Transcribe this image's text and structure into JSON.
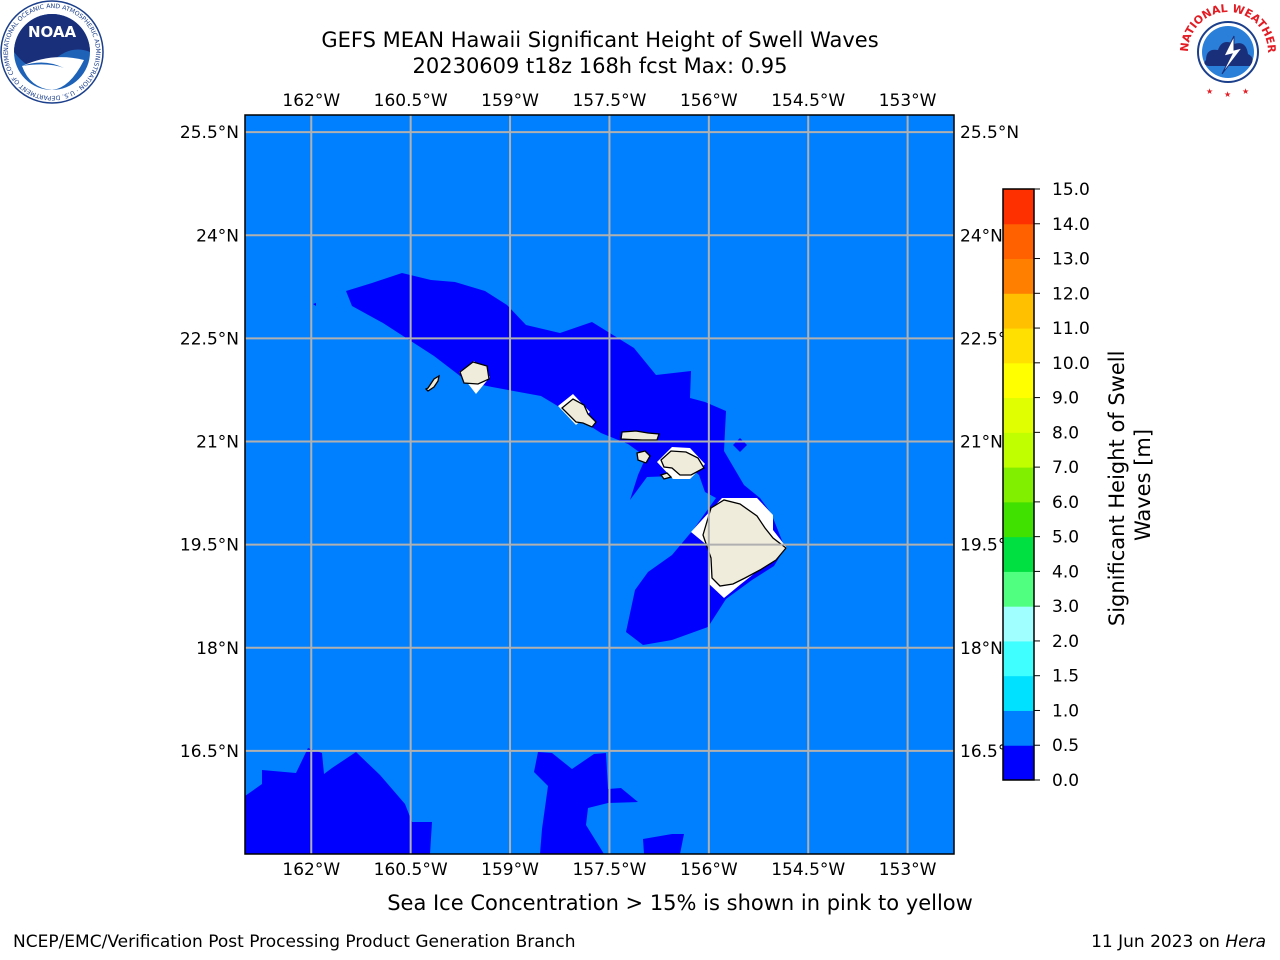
{
  "title": {
    "line1": "GEFS MEAN Hawaii Significant Height of Swell Waves",
    "line2": "20230609 t18z 168h fcst   Max: 0.95"
  },
  "logos": {
    "left": {
      "icon": "noaa-logo-icon",
      "text": "NOAA",
      "ring_text": "NATIONAL OCEANIC AND ATMOSPHERIC ADMINISTRATION · U.S. DEPARTMENT OF COMMERCE"
    },
    "right": {
      "icon": "nws-logo-icon",
      "ring_text": "NATIONAL WEATHER SERVICE"
    }
  },
  "map": {
    "lon_ticks": [
      "162°W",
      "160.5°W",
      "159°W",
      "157.5°W",
      "156°W",
      "154.5°W",
      "153°W"
    ],
    "lon_values": [
      -162,
      -160.5,
      -159,
      -157.5,
      -156,
      -154.5,
      -153
    ],
    "lat_ticks": [
      "25.5°N",
      "24°N",
      "22.5°N",
      "21°N",
      "19.5°N",
      "18°N",
      "16.5°N"
    ],
    "lat_values": [
      25.5,
      24,
      22.5,
      21,
      19.5,
      18,
      16.5
    ],
    "lon_range": [
      -163,
      -152.3
    ],
    "lat_range": [
      15,
      25.75
    ],
    "grid": true,
    "ocean_color": "#0080ff",
    "land_color": "#efecdc"
  },
  "colorbar": {
    "label": "Significant Height of Swell Waves [m]",
    "label_line1": "Significant Height of Swell",
    "label_line2": "Waves [m]",
    "ticks": [
      "15.0",
      "14.0",
      "13.0",
      "12.0",
      "11.0",
      "10.0",
      "9.0",
      "8.0",
      "7.0",
      "6.0",
      "5.0",
      "4.0",
      "3.0",
      "2.0",
      "1.5",
      "1.0",
      "0.5",
      "0.0"
    ],
    "levels": [
      0.0,
      0.5,
      1.0,
      1.5,
      2.0,
      3.0,
      4.0,
      5.0,
      6.0,
      7.0,
      8.0,
      9.0,
      10.0,
      11.0,
      12.0,
      13.0,
      14.0,
      15.0
    ],
    "colors": [
      "#0000ff",
      "#0080ff",
      "#00e0ff",
      "#40ffff",
      "#a0ffff",
      "#50ff80",
      "#00e040",
      "#40e000",
      "#80f000",
      "#c0ff00",
      "#e0ff00",
      "#ffff00",
      "#ffe000",
      "#ffc000",
      "#ff8000",
      "#ff6000",
      "#ff3000"
    ]
  },
  "notes": {
    "ice": "Sea Ice Concentration > 15% is shown in pink to yellow"
  },
  "footer": {
    "left": "NCEP/EMC/Verification Post Processing Product Generation Branch",
    "right_date": "11 Jun 2023 on ",
    "right_host": "Hera"
  }
}
